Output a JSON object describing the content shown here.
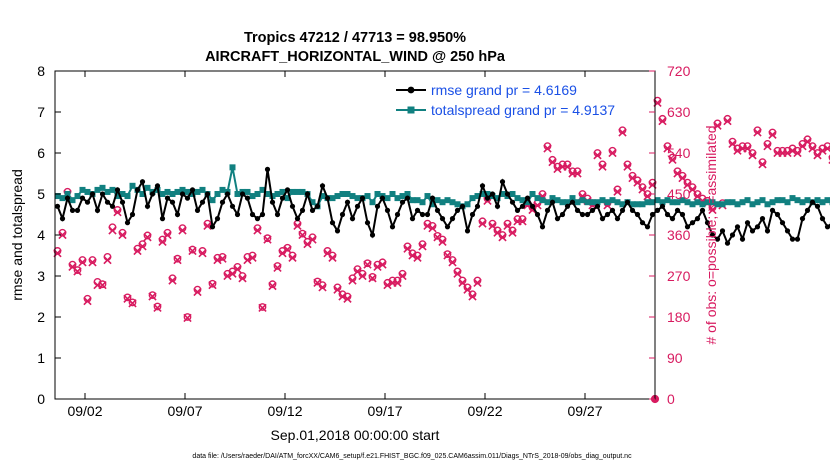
{
  "colors": {
    "rmse": "#000000",
    "spread": "#118080",
    "obs": "#d81b60",
    "legend_text": "#1a50e6",
    "axis": "#000000"
  },
  "chart_data": {
    "type": "line",
    "title": "Tropics 47212 / 47713 = 98.950%",
    "subtitle": "AIRCRAFT_HORIZONTAL_WIND @ 250 hPa",
    "xlabel": "Sep.01,2018 00:00:00 start",
    "ylabel_left": "rmse and totalspread",
    "ylabel_right": "# of obs: o=possible; ×=assimilated",
    "footnote": "data file: /Users/raeder/DAI/ATM_forcXX/CAM6_setup/f.e21.FHIST_BGC.f09_025.CAM6assim.011/Diags_NTrS_2018-09/obs_diag_output.nc",
    "xlim": [
      0.5,
      30.5
    ],
    "ylim_left": [
      0,
      8
    ],
    "ylim_right": [
      0,
      720
    ],
    "xticks": [
      {
        "value": 2,
        "label": "09/02"
      },
      {
        "value": 7,
        "label": "09/07"
      },
      {
        "value": 12,
        "label": "09/12"
      },
      {
        "value": 17,
        "label": "09/17"
      },
      {
        "value": 22,
        "label": "09/22"
      },
      {
        "value": 27,
        "label": "09/27"
      }
    ],
    "yticks_left": [
      0,
      1,
      2,
      3,
      4,
      5,
      6,
      7,
      8
    ],
    "yticks_right": [
      0,
      90,
      180,
      270,
      360,
      450,
      540,
      630,
      720
    ],
    "x_start": 0.625,
    "x_step": 0.25,
    "legend": {
      "position": "top-right",
      "entries": [
        {
          "label": "rmse grand pr = 4.6169",
          "series": "rmse"
        },
        {
          "label": "totalspread grand pr = 4.9137",
          "series": "spread"
        }
      ]
    },
    "series": [
      {
        "name": "rmse",
        "axis": "left",
        "values": [
          4.7,
          4.4,
          4.9,
          4.6,
          4.6,
          4.9,
          4.8,
          5.0,
          4.6,
          5.0,
          4.8,
          4.7,
          5.1,
          4.8,
          4.3,
          4.5,
          5.1,
          5.3,
          4.7,
          5.0,
          5.2,
          4.4,
          4.9,
          4.8,
          4.5,
          5.0,
          4.9,
          5.1,
          4.6,
          4.8,
          5.0,
          4.2,
          4.4,
          4.8,
          5.0,
          4.7,
          4.5,
          5.0,
          4.9,
          4.5,
          4.4,
          4.5,
          5.6,
          4.8,
          4.5,
          4.9,
          5.1,
          4.7,
          4.4,
          4.6,
          5.0,
          4.6,
          4.7,
          5.2,
          4.9,
          4.3,
          4.1,
          4.5,
          4.8,
          4.4,
          4.7,
          4.9,
          4.3,
          4.0,
          4.7,
          4.9,
          4.6,
          4.2,
          4.5,
          4.8,
          4.9,
          4.4,
          4.6,
          4.5,
          4.5,
          4.9,
          4.6,
          4.4,
          4.2,
          4.4,
          4.6,
          4.7,
          4.1,
          4.5,
          4.7,
          5.2,
          4.9,
          5.0,
          4.7,
          5.3,
          5.0,
          4.8,
          4.6,
          4.7,
          4.9,
          4.7,
          4.5,
          4.2,
          4.6,
          4.8,
          4.4,
          4.5,
          4.7,
          4.8,
          4.6,
          4.5,
          4.5,
          4.6,
          4.7,
          4.4,
          4.5,
          4.6,
          4.4,
          4.6,
          4.8,
          4.6,
          4.5,
          4.3,
          4.2,
          4.5,
          4.6,
          4.7,
          4.5,
          4.4,
          4.6,
          4.5,
          4.2,
          4.3,
          4.4,
          4.6,
          4.3,
          4.0,
          3.9,
          4.1,
          3.8,
          4.0,
          4.2,
          3.9,
          4.3,
          4.1,
          4.2,
          4.4,
          4.1,
          4.6,
          4.5,
          4.3,
          4.1,
          3.9,
          3.9,
          4.4,
          4.6,
          4.8,
          4.7,
          4.4,
          4.2,
          4.3,
          4.2
        ]
      },
      {
        "name": "totalspread",
        "axis": "left",
        "values": [
          4.95,
          4.9,
          5.0,
          4.85,
          4.95,
          5.1,
          5.05,
          5.0,
          5.1,
          5.15,
          5.05,
          5.1,
          4.95,
          5.0,
          4.95,
          5.2,
          5.1,
          5.0,
          5.15,
          5.05,
          5.1,
          5.0,
          5.05,
          5.0,
          5.05,
          5.1,
          5.05,
          5.0,
          5.05,
          5.1,
          5.0,
          4.85,
          5.0,
          5.1,
          5.05,
          5.65,
          5.0,
          5.05,
          5.05,
          4.95,
          5.0,
          5.1,
          5.0,
          4.95,
          5.0,
          5.05,
          4.9,
          5.05,
          5.05,
          5.05,
          5.0,
          4.8,
          4.7,
          4.95,
          4.9,
          4.9,
          4.95,
          5.0,
          5.0,
          4.95,
          4.9,
          4.9,
          4.95,
          4.8,
          5.0,
          4.95,
          4.9,
          5.0,
          4.9,
          4.95,
          5.0,
          4.85,
          4.85,
          4.8,
          4.95,
          4.75,
          4.85,
          4.8,
          4.85,
          4.8,
          4.75,
          4.7,
          4.75,
          4.9,
          4.95,
          5.0,
          5.0,
          4.95,
          4.9,
          5.0,
          4.95,
          5.0,
          4.9,
          4.85,
          4.8,
          5.0,
          4.9,
          4.85,
          4.8,
          4.9,
          4.85,
          4.8,
          4.8,
          4.9,
          4.8,
          4.85,
          4.8,
          4.8,
          4.8,
          4.85,
          4.8,
          4.85,
          4.8,
          4.75,
          4.8,
          4.75,
          4.75,
          4.75,
          4.8,
          4.8,
          4.85,
          4.8,
          4.85,
          4.8,
          4.8,
          4.85,
          4.8,
          4.75,
          4.8,
          4.75,
          4.8,
          4.8,
          4.75,
          4.75,
          4.8,
          4.8,
          4.75,
          4.8,
          4.85,
          4.75,
          4.8,
          4.85,
          4.75,
          4.8,
          4.85,
          4.85,
          4.8,
          4.9,
          4.85,
          4.8,
          4.85,
          4.8,
          4.85,
          4.8,
          4.85,
          4.8,
          4.75
        ]
      },
      {
        "name": "obs_possible",
        "axis": "right",
        "values": [
          325,
          365,
          455,
          295,
          283,
          305,
          220,
          305,
          257,
          252,
          312,
          377,
          415,
          365,
          223,
          212,
          330,
          340,
          359,
          228,
          203,
          350,
          365,
          265,
          308,
          375,
          180,
          328,
          240,
          325,
          385,
          253,
          310,
          312,
          275,
          280,
          290,
          270,
          312,
          315,
          375,
          202,
          353,
          252,
          292,
          325,
          332,
          315,
          385,
          363,
          345,
          355,
          258,
          250,
          325,
          315,
          245,
          230,
          225,
          265,
          285,
          275,
          298,
          268,
          295,
          300,
          255,
          260,
          260,
          275,
          335,
          320,
          315,
          340,
          385,
          380,
          358,
          350,
          318,
          305,
          280,
          260,
          245,
          230,
          260,
          390,
          440,
          385,
          370,
          360,
          385,
          370,
          395,
          395,
          430,
          420,
          430,
          450,
          555,
          525,
          510,
          515,
          515,
          500,
          500,
          450,
          440,
          430,
          540,
          515,
          430,
          545,
          460,
          590,
          515,
          490,
          480,
          465,
          450,
          475,
          655,
          615,
          555,
          530,
          500,
          490,
          475,
          465,
          450,
          440,
          435,
          420,
          605,
          430,
          615,
          565,
          550,
          555,
          555,
          540,
          590,
          520,
          560,
          585,
          545,
          545,
          545,
          550,
          545,
          560,
          570,
          555,
          540,
          550,
          555,
          530,
          510,
          505,
          500,
          515,
          580
        ]
      },
      {
        "name": "obs_assimilated",
        "axis": "right",
        "values": [
          320,
          360,
          450,
          290,
          280,
          300,
          215,
          300,
          250,
          250,
          305,
          370,
          410,
          360,
          220,
          210,
          325,
          335,
          355,
          225,
          200,
          345,
          360,
          260,
          305,
          370,
          178,
          325,
          235,
          320,
          380,
          250,
          305,
          308,
          270,
          275,
          285,
          265,
          305,
          310,
          370,
          200,
          350,
          248,
          288,
          320,
          328,
          310,
          380,
          360,
          340,
          350,
          255,
          245,
          320,
          310,
          240,
          225,
          220,
          260,
          280,
          270,
          295,
          265,
          290,
          295,
          250,
          255,
          255,
          270,
          330,
          315,
          310,
          335,
          380,
          375,
          355,
          345,
          315,
          300,
          275,
          255,
          240,
          225,
          255,
          385,
          435,
          380,
          365,
          355,
          380,
          365,
          390,
          390,
          425,
          415,
          425,
          445,
          550,
          520,
          505,
          510,
          510,
          495,
          495,
          445,
          435,
          425,
          535,
          510,
          425,
          540,
          455,
          585,
          510,
          485,
          475,
          460,
          445,
          470,
          650,
          610,
          550,
          525,
          495,
          485,
          470,
          460,
          445,
          435,
          430,
          415,
          600,
          425,
          610,
          560,
          545,
          550,
          550,
          535,
          585,
          515,
          555,
          580,
          540,
          540,
          540,
          545,
          540,
          555,
          565,
          550,
          535,
          545,
          550,
          525,
          505,
          500,
          495,
          510,
          575
        ]
      }
    ]
  }
}
